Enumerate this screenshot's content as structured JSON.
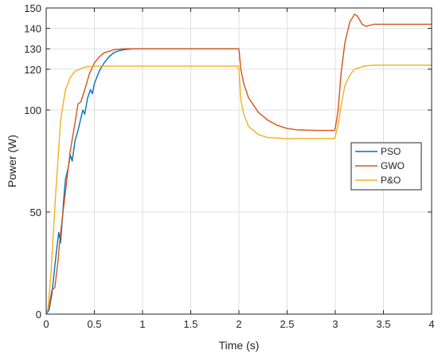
{
  "chart_data": {
    "type": "line",
    "xlabel": "Time (s)",
    "ylabel": "Power (W)",
    "xlim": [
      0,
      4
    ],
    "ylim": [
      0,
      150
    ],
    "grid": true,
    "legend_position": "right",
    "x_ticks": [
      0,
      0.5,
      1,
      1.5,
      2,
      2.5,
      3,
      3.5,
      4
    ],
    "x_tick_labels": [
      "0",
      "0.5",
      "1",
      "1.5",
      "2",
      "2.5",
      "3",
      "3.5",
      "4"
    ],
    "y_ticks": [
      0,
      50,
      100,
      120,
      130,
      140,
      150
    ],
    "y_tick_labels": [
      "0",
      "50",
      "100",
      "120",
      "130",
      "140",
      "150"
    ],
    "series": [
      {
        "name": "PSO",
        "color": "#0072BD",
        "points": [
          [
            0,
            0
          ],
          [
            0.03,
            2
          ],
          [
            0.06,
            10
          ],
          [
            0.1,
            28
          ],
          [
            0.13,
            40
          ],
          [
            0.15,
            35
          ],
          [
            0.18,
            55
          ],
          [
            0.2,
            66
          ],
          [
            0.23,
            72
          ],
          [
            0.25,
            78
          ],
          [
            0.27,
            75
          ],
          [
            0.3,
            85
          ],
          [
            0.33,
            90
          ],
          [
            0.36,
            96
          ],
          [
            0.38,
            100
          ],
          [
            0.4,
            98
          ],
          [
            0.43,
            106
          ],
          [
            0.46,
            110
          ],
          [
            0.48,
            108
          ],
          [
            0.5,
            113
          ],
          [
            0.55,
            119
          ],
          [
            0.6,
            123
          ],
          [
            0.65,
            126
          ],
          [
            0.7,
            128
          ],
          [
            0.75,
            129
          ],
          [
            0.8,
            129.5
          ],
          [
            0.9,
            130
          ],
          [
            1.0,
            130
          ],
          [
            1.5,
            130
          ],
          [
            1.99,
            130
          ]
        ]
      },
      {
        "name": "GWO",
        "color": "#D95319",
        "points": [
          [
            0,
            0
          ],
          [
            0.03,
            4
          ],
          [
            0.06,
            12
          ],
          [
            0.09,
            13
          ],
          [
            0.12,
            25
          ],
          [
            0.15,
            40
          ],
          [
            0.2,
            60
          ],
          [
            0.25,
            80
          ],
          [
            0.3,
            94
          ],
          [
            0.33,
            103
          ],
          [
            0.36,
            104
          ],
          [
            0.4,
            110
          ],
          [
            0.45,
            118
          ],
          [
            0.5,
            123
          ],
          [
            0.55,
            126
          ],
          [
            0.6,
            128
          ],
          [
            0.7,
            129.5
          ],
          [
            0.8,
            130
          ],
          [
            1.0,
            130
          ],
          [
            1.5,
            130
          ],
          [
            1.99,
            130
          ],
          [
            2.0,
            130
          ],
          [
            2.02,
            120
          ],
          [
            2.05,
            113
          ],
          [
            2.1,
            106
          ],
          [
            2.2,
            99
          ],
          [
            2.3,
            95
          ],
          [
            2.4,
            92.5
          ],
          [
            2.5,
            91
          ],
          [
            2.6,
            90.3
          ],
          [
            2.8,
            90
          ],
          [
            2.99,
            90
          ],
          [
            3.0,
            91
          ],
          [
            3.03,
            100
          ],
          [
            3.06,
            118
          ],
          [
            3.1,
            133
          ],
          [
            3.15,
            143
          ],
          [
            3.2,
            147
          ],
          [
            3.23,
            146
          ],
          [
            3.28,
            142
          ],
          [
            3.32,
            141
          ],
          [
            3.4,
            142
          ],
          [
            3.5,
            142
          ],
          [
            3.7,
            142
          ],
          [
            4.0,
            142
          ]
        ]
      },
      {
        "name": "P&O",
        "color": "#EDB120",
        "points": [
          [
            0,
            0
          ],
          [
            0.02,
            3
          ],
          [
            0.05,
            20
          ],
          [
            0.1,
            60
          ],
          [
            0.15,
            95
          ],
          [
            0.2,
            110
          ],
          [
            0.25,
            116
          ],
          [
            0.3,
            119
          ],
          [
            0.4,
            121
          ],
          [
            0.5,
            121.5
          ],
          [
            0.7,
            121.5
          ],
          [
            1.0,
            121.5
          ],
          [
            1.5,
            121.5
          ],
          [
            1.99,
            121.5
          ],
          [
            2.0,
            120
          ],
          [
            2.02,
            105
          ],
          [
            2.05,
            98
          ],
          [
            2.1,
            92
          ],
          [
            2.2,
            88
          ],
          [
            2.3,
            86.5
          ],
          [
            2.5,
            86
          ],
          [
            2.8,
            86
          ],
          [
            2.99,
            86
          ],
          [
            3.0,
            87
          ],
          [
            3.03,
            93
          ],
          [
            3.06,
            102
          ],
          [
            3.1,
            112
          ],
          [
            3.15,
            117
          ],
          [
            3.2,
            120
          ],
          [
            3.3,
            121.5
          ],
          [
            3.4,
            122
          ],
          [
            3.6,
            122
          ],
          [
            4.0,
            122
          ]
        ]
      }
    ]
  }
}
